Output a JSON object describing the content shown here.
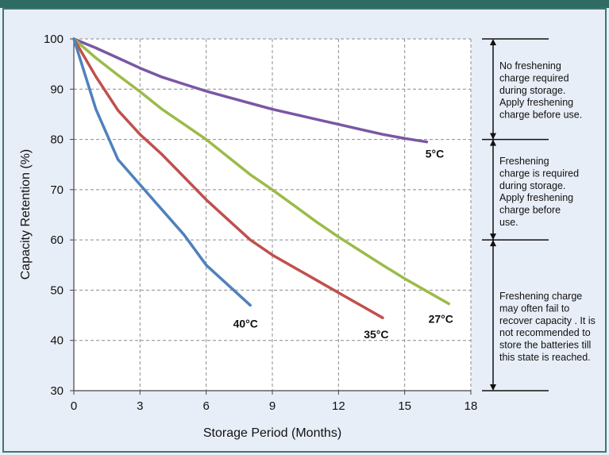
{
  "chart_data": {
    "type": "line",
    "title": "",
    "xlabel": "Storage Period (Months)",
    "ylabel": "Capacity Retention (%)",
    "xlim": [
      0,
      18
    ],
    "ylim": [
      30,
      100
    ],
    "xticks": [
      0,
      3,
      6,
      9,
      12,
      15,
      18
    ],
    "yticks": [
      30,
      40,
      50,
      60,
      70,
      80,
      90,
      100
    ],
    "grid": true,
    "series": [
      {
        "name": "5°C",
        "color": "#7a57a4",
        "x": [
          0,
          1,
          2,
          3,
          4,
          5,
          6,
          7,
          8,
          9,
          10,
          11,
          12,
          13,
          14,
          15,
          16
        ],
        "y": [
          100,
          98.2,
          96.2,
          94.2,
          92.4,
          91.0,
          89.6,
          88.4,
          87.2,
          86.0,
          85.0,
          84.0,
          83.0,
          82.0,
          81.0,
          80.2,
          79.5
        ]
      },
      {
        "name": "27°C",
        "color": "#9bbb47",
        "x": [
          0,
          1,
          2,
          3,
          4,
          5,
          6,
          7,
          8,
          9,
          10,
          11,
          12,
          13,
          14,
          15,
          16,
          17
        ],
        "y": [
          100,
          96.2,
          92.8,
          89.5,
          86.0,
          83.0,
          80.0,
          76.5,
          73.0,
          70.0,
          66.8,
          63.6,
          60.6,
          57.8,
          55.0,
          52.3,
          49.8,
          47.3
        ]
      },
      {
        "name": "35°C",
        "color": "#c0504d",
        "x": [
          0,
          1,
          2,
          3,
          4,
          5,
          6,
          7,
          8,
          9,
          10,
          11,
          12,
          13,
          14
        ],
        "y": [
          100,
          92.5,
          85.8,
          81.0,
          77.0,
          72.5,
          68.0,
          64.0,
          60.0,
          57.0,
          54.5,
          52.0,
          49.5,
          47.0,
          44.5
        ]
      },
      {
        "name": "40°C",
        "color": "#4f81bd",
        "x": [
          0,
          1,
          2,
          3,
          4,
          5,
          6,
          7,
          8
        ],
        "y": [
          100,
          86.0,
          76.0,
          71.0,
          66.0,
          61.0,
          55.0,
          51.0,
          47.0
        ]
      }
    ],
    "annotations": [
      {
        "text": "No freshening charge  required during storage. Apply freshening charge before use.",
        "y_top": 100,
        "y_bottom": 80
      },
      {
        "text": "Freshening charge is required during storage. Apply freshening charge  before use.",
        "y_top": 80,
        "y_bottom": 60
      },
      {
        "text": "Freshening charge may  often fail to recover capacity . It is not recommended  to store the batteries till this state is reached.",
        "y_top": 60,
        "y_bottom": 30
      }
    ]
  },
  "annotation_lines": [
    [
      "No freshening",
      "charge  required",
      "during storage.",
      "Apply freshening",
      "charge before use."
    ],
    [
      "Freshening",
      "charge is required",
      "during storage.",
      "Apply freshening",
      "charge  before",
      "use."
    ],
    [
      "Freshening charge",
      "may  often fail to",
      "recover capacity . It is",
      "not recommended  to",
      "store the batteries till",
      "this state is reached."
    ]
  ]
}
